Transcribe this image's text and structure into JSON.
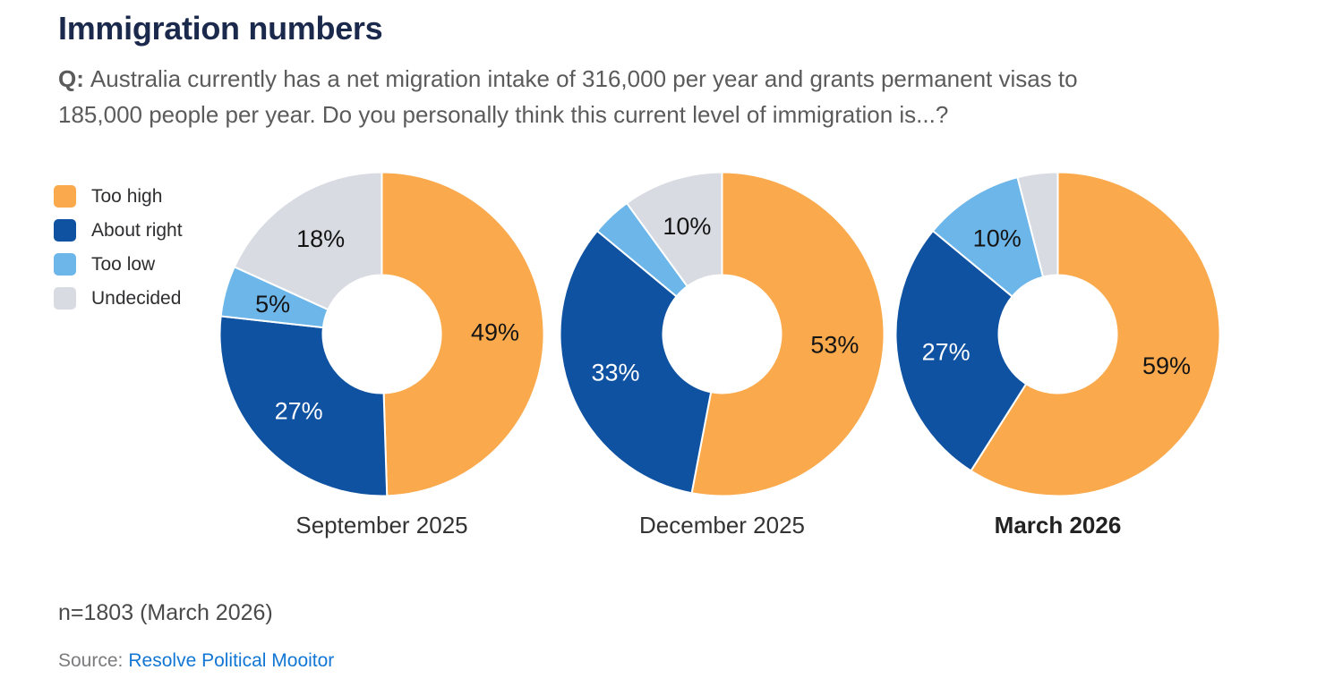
{
  "header": {
    "title": "Immigration numbers"
  },
  "question": {
    "prefix": "Q:",
    "line1": "Australia currently has a net migration intake of 316,000 per year and grants permanent visas to",
    "line2": "185,000 people per year. Do you personally think this current level of immigration is...?"
  },
  "footer": {
    "sample_note": "n=1803 (March 2026)",
    "source_label": "Source:",
    "source_link_text": "Resolve Political Mooitor"
  },
  "colors": {
    "title": "#1B2A4C",
    "link": "#1277D4",
    "too_high": "#FAA94C",
    "about_right": "#0F52A1",
    "too_low": "#6DB6E9",
    "undecided": "#D8DBE2"
  },
  "chart_data": {
    "type": "pie",
    "subtype": "donut",
    "title": "Immigration numbers",
    "categories": [
      "Too high",
      "About right",
      "Too low",
      "Undecided"
    ],
    "colors": [
      "#FAA94C",
      "#0F52A1",
      "#6DB6E9",
      "#D8DBE2"
    ],
    "label_text_colors": [
      "#141414",
      "#FFFFFF",
      "#141414",
      "#141414"
    ],
    "legend_position": "left",
    "inner_radius_ratio": 0.365,
    "start_angle_deg": 0,
    "direction": "clockwise",
    "series": [
      {
        "name": "September 2025",
        "values": [
          49,
          27,
          5,
          18
        ],
        "labels": [
          "49%",
          "27%",
          "5%",
          "18%"
        ],
        "bold": false
      },
      {
        "name": "December 2025",
        "values": [
          53,
          33,
          4,
          10
        ],
        "labels": [
          "53%",
          "33%",
          "",
          "10%"
        ],
        "bold": false
      },
      {
        "name": "March 2026",
        "values": [
          59,
          27,
          10,
          4
        ],
        "labels": [
          "59%",
          "27%",
          "10%",
          ""
        ],
        "bold": true
      }
    ]
  }
}
